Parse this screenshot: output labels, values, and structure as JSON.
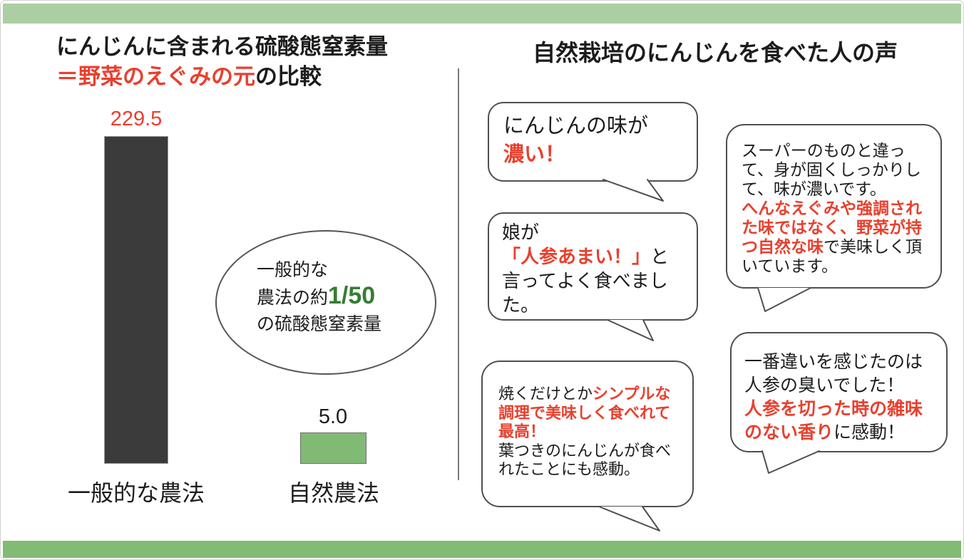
{
  "colors": {
    "accent_red": "#e8402e",
    "accent_green": "#357d35",
    "band_top": "#abcfa2",
    "band_bottom": "#82bb74",
    "bar_dark": "#3b3b3b",
    "bar_green": "#81ba74"
  },
  "left_panel": {
    "title_segments": [
      {
        "t": "にんじんに含まれる硫酸態窒素量\n"
      },
      {
        "t": "＝野菜のえぐみの元",
        "s": "red"
      },
      {
        "t": "の比較"
      }
    ],
    "ellipse_segments": [
      {
        "t": "一般的な\n農法の約"
      },
      {
        "t": "1/50",
        "s": "green"
      },
      {
        "t": "\nの硫酸態窒素量"
      }
    ]
  },
  "chart_data": {
    "type": "bar",
    "title": "にんじんに含まれる硫酸態窒素量＝野菜のえぐみの元の比較",
    "categories": [
      "一般的な農法",
      "自然農法"
    ],
    "values": [
      229.5,
      5.0
    ],
    "value_labels": [
      "229.5",
      "5.0"
    ],
    "bar_colors": [
      "#3b3b3b",
      "#81ba74"
    ],
    "value_label_colors": [
      "#e8402e",
      "#1c1c1c"
    ],
    "annotation": "一般的な農法の約1/50の硫酸態窒素量",
    "xlabel": "",
    "ylabel": "",
    "ylim": [
      0,
      240
    ],
    "grid": false,
    "legend": false
  },
  "right_panel": {
    "title": "自然栽培のにんじんを食べた人の声",
    "bubbles": [
      {
        "segments": [
          {
            "t": "にんじんの味が\n"
          },
          {
            "t": "濃い！",
            "s": "red"
          }
        ]
      },
      {
        "segments": [
          {
            "t": "娘が\n"
          },
          {
            "t": "「人参あまい！」",
            "s": "red"
          },
          {
            "t": "と\n言ってよく食べました。"
          }
        ]
      },
      {
        "segments": [
          {
            "t": "焼くだけとか"
          },
          {
            "t": "シンプルな調理で美味しく食べれて最高！",
            "s": "red"
          },
          {
            "t": "\n葉つきのにんじんが食べれたことにも感動。"
          }
        ]
      },
      {
        "segments": [
          {
            "t": "スーパーのものと違って、身が固くしっかりして、味が濃いです。\n"
          },
          {
            "t": "へんなえぐみや強調された味ではなく、野菜が持つ自然な味",
            "s": "red"
          },
          {
            "t": "で美味しく頂いています。"
          }
        ]
      },
      {
        "segments": [
          {
            "t": "一番違いを感じたのは人参の臭いでした！\n"
          },
          {
            "t": "人参を切った時の雑味のない香り",
            "s": "red"
          },
          {
            "t": "に感動！"
          }
        ]
      }
    ]
  }
}
